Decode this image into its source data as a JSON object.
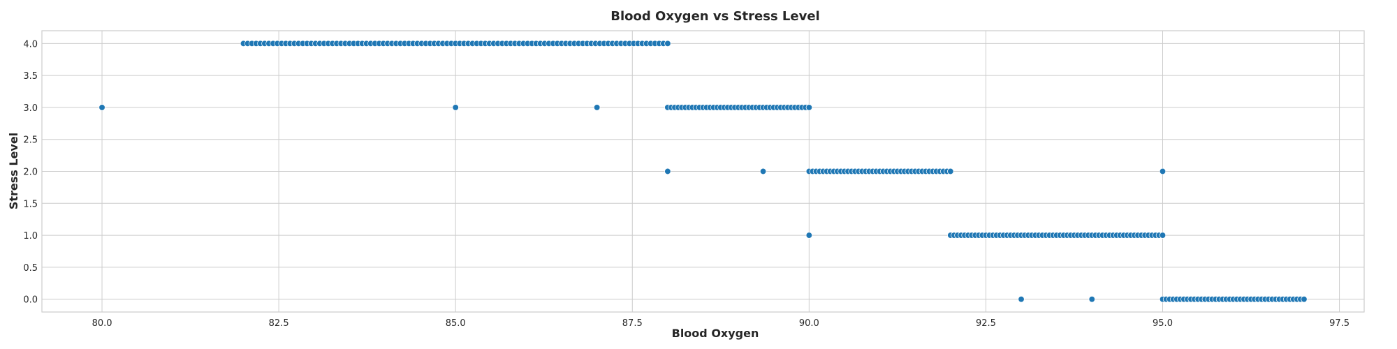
{
  "chart_data": {
    "type": "scatter",
    "title": "Blood Oxygen vs Stress Level",
    "xlabel": "Blood Oxygen",
    "ylabel": "Stress Level",
    "xlim": [
      79.15,
      97.85
    ],
    "ylim": [
      -0.2,
      4.2
    ],
    "xticks": [
      80.0,
      82.5,
      85.0,
      87.5,
      90.0,
      92.5,
      95.0,
      97.5
    ],
    "yticks": [
      0.0,
      0.5,
      1.0,
      1.5,
      2.0,
      2.5,
      3.0,
      3.5,
      4.0
    ],
    "grid": true,
    "color": "#1f77b4",
    "clusters": [
      {
        "y": 4,
        "x_min": 82.0,
        "x_max": 88.0,
        "step": 0.06
      },
      {
        "y": 3,
        "x_min": 88.0,
        "x_max": 90.0,
        "step": 0.05
      },
      {
        "y": 2,
        "x_min": 90.0,
        "x_max": 92.0,
        "step": 0.05
      },
      {
        "y": 1,
        "x_min": 92.0,
        "x_max": 95.0,
        "step": 0.05
      },
      {
        "y": 0,
        "x_min": 95.0,
        "x_max": 97.0,
        "step": 0.05
      }
    ],
    "isolated_points": [
      {
        "x": 80.0,
        "y": 3
      },
      {
        "x": 85.0,
        "y": 3
      },
      {
        "x": 87.0,
        "y": 3
      },
      {
        "x": 88.0,
        "y": 2
      },
      {
        "x": 89.35,
        "y": 2
      },
      {
        "x": 95.0,
        "y": 2
      },
      {
        "x": 90.0,
        "y": 1
      },
      {
        "x": 93.0,
        "y": 0
      },
      {
        "x": 94.0,
        "y": 0
      }
    ]
  }
}
